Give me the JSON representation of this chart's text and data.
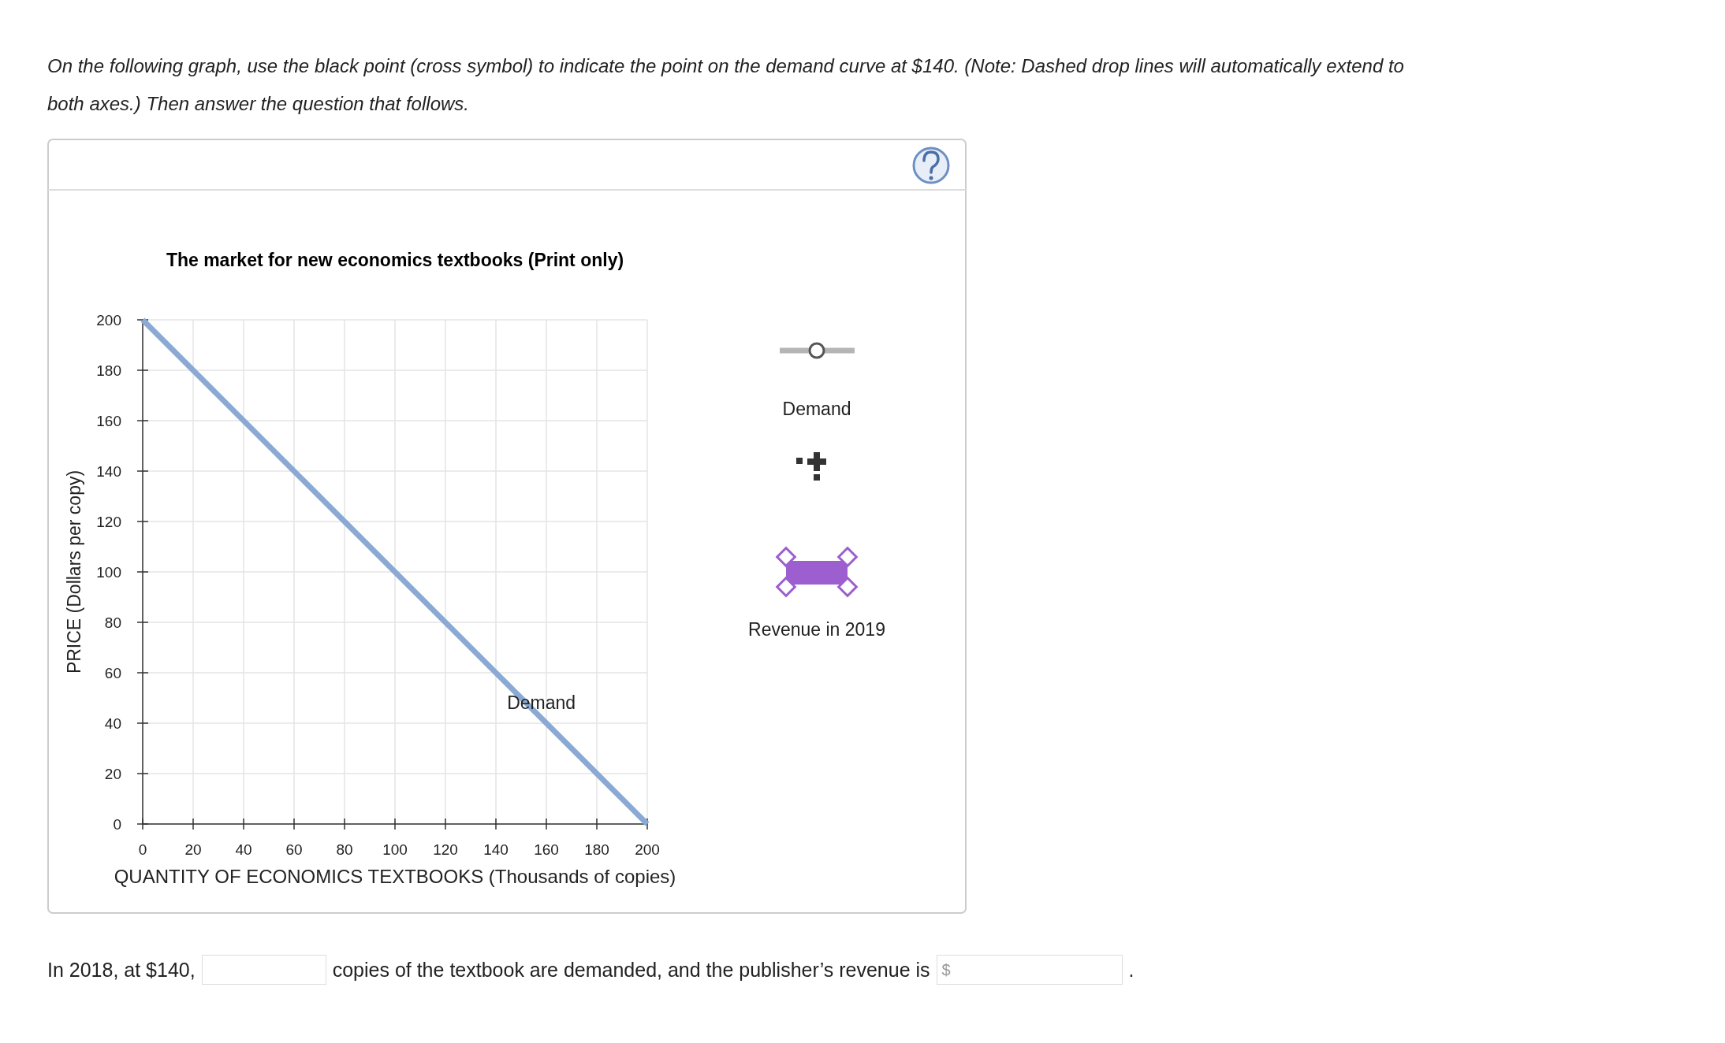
{
  "chart_data": {
    "type": "line",
    "title": "The market for new economics textbooks (Print only)",
    "xlabel": "QUANTITY OF ECONOMICS TEXTBOOKS (Thousands of copies)",
    "ylabel": "PRICE (Dollars per copy)",
    "x": [
      0,
      200
    ],
    "series": [
      {
        "name": "Demand",
        "color": "#8aaad4",
        "values": [
          200,
          0
        ]
      }
    ],
    "xlim": [
      0,
      200
    ],
    "ylim": [
      0,
      200
    ],
    "xticks": [
      0,
      20,
      40,
      60,
      80,
      100,
      120,
      140,
      160,
      180,
      200
    ],
    "yticks": [
      0,
      20,
      40,
      60,
      80,
      100,
      120,
      140,
      160,
      180,
      200
    ],
    "grid": true,
    "marker": "none",
    "annotations": [
      "On the following graph, use the black point (cross symbol) to indicate the point on the demand curve at $140. (Note: Dashed drop lines will automatically extend to both axes.) Then answer the question that follows.",
      "Demand",
      "Revenue in 2019",
      "In 2018, at $140,",
      "copies of the textbook are demanded, and the publisher’s revenue is",
      "$",
      "."
    ]
  }
}
